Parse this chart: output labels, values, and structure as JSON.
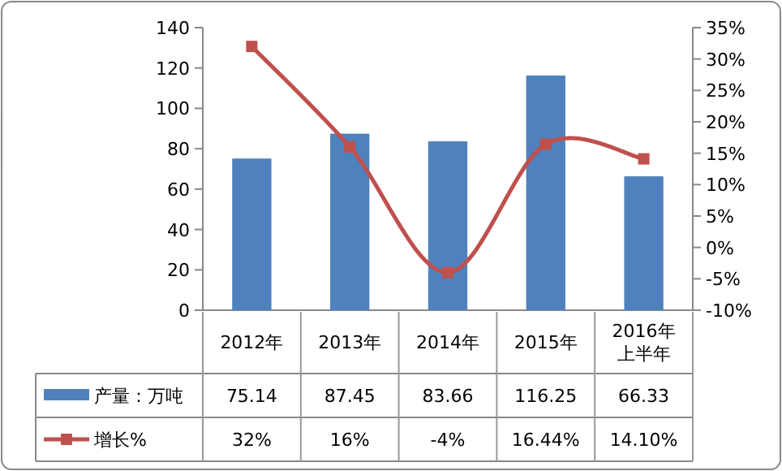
{
  "chart_data": {
    "type": "bar",
    "categories": [
      "2012年",
      "2013年",
      "2014年",
      "2015年",
      "2016年上半年"
    ],
    "series": [
      {
        "name": "产量：万吨",
        "color": "#4f81bd",
        "values": [
          75.14,
          87.45,
          83.66,
          116.25,
          66.33
        ],
        "value_labels": [
          "75.14",
          "87.45",
          "83.66",
          "116.25",
          "66.33"
        ]
      },
      {
        "name": "增长%",
        "type": "line",
        "axis": "y2",
        "color": "#c0504d",
        "marker": "square",
        "values": [
          32,
          16,
          -4,
          16.44,
          14.1
        ],
        "value_labels": [
          "32%",
          "16%",
          "-4%",
          "16.44%",
          "14.10%"
        ]
      }
    ],
    "ylim": [
      0,
      140
    ],
    "yticks": [
      0,
      20,
      40,
      60,
      80,
      100,
      120,
      140
    ],
    "y2lim": [
      -10,
      35
    ],
    "y2ticks": [
      {
        "value": -10,
        "label": "-10%"
      },
      {
        "value": -5,
        "label": "-5%"
      },
      {
        "value": 0,
        "label": "0%"
      },
      {
        "value": 5,
        "label": "5%"
      },
      {
        "value": 10,
        "label": "10%"
      },
      {
        "value": 15,
        "label": "15%"
      },
      {
        "value": 20,
        "label": "20%"
      },
      {
        "value": 25,
        "label": "25%"
      },
      {
        "value": 30,
        "label": "30%"
      },
      {
        "value": 35,
        "label": "35%"
      }
    ],
    "legend": "bottom",
    "grid": false
  }
}
